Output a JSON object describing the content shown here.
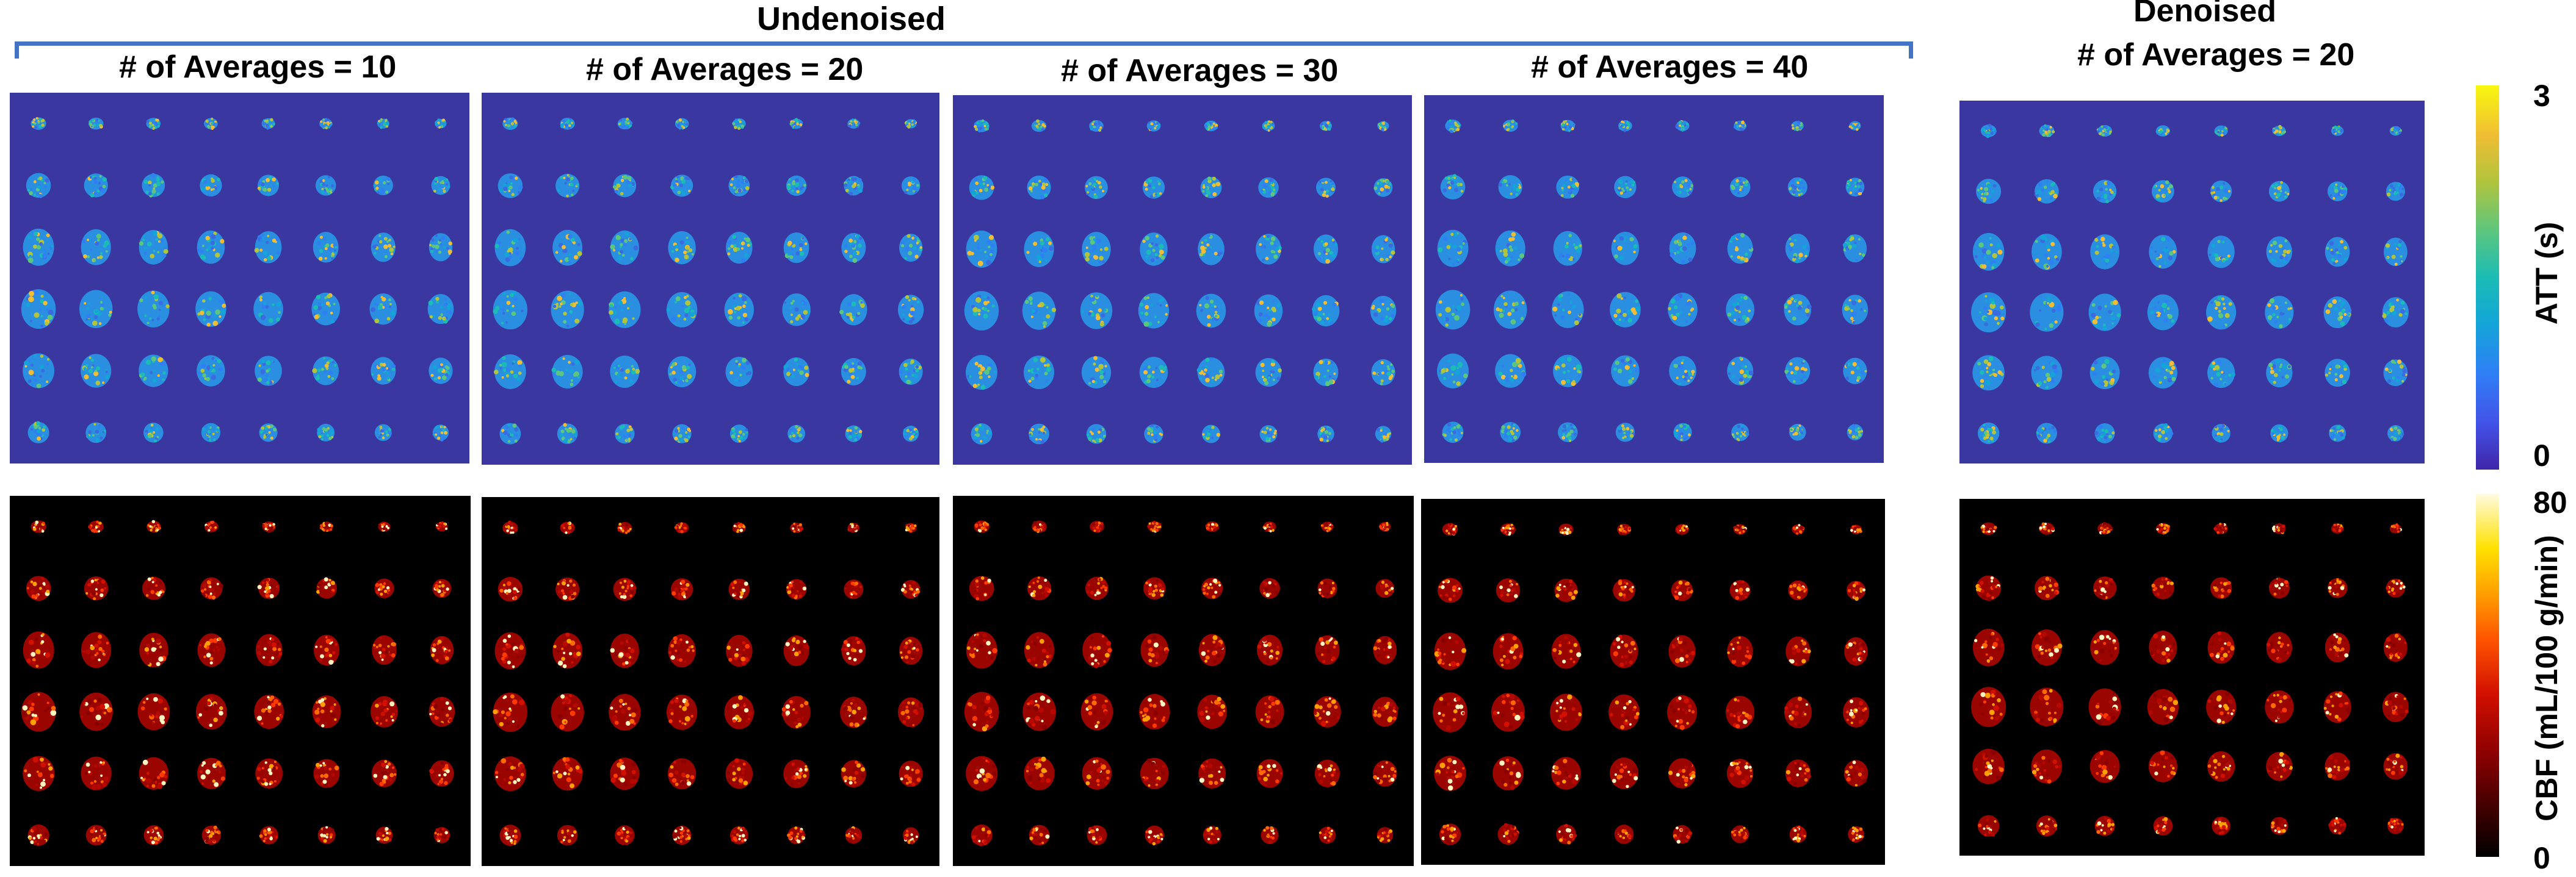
{
  "header": {
    "group_title": "Undenoised",
    "denoised_title": "Denoised"
  },
  "panels": [
    {
      "title": "# of Averages = 10"
    },
    {
      "title": "# of Averages = 20"
    },
    {
      "title": "# of Averages = 30"
    },
    {
      "title": "# of Averages = 40"
    },
    {
      "title": "# of Averages = 20"
    }
  ],
  "colorbars": {
    "att": {
      "max": "3",
      "min": "0",
      "label": "ATT (s)"
    },
    "cbf": {
      "max": "80",
      "min": "0",
      "label": "CBF (mL/100 g/min)"
    }
  },
  "colors": {
    "att_background": "#3a37a0",
    "cbf_background": "#000000",
    "bracket": "#4472c4"
  }
}
